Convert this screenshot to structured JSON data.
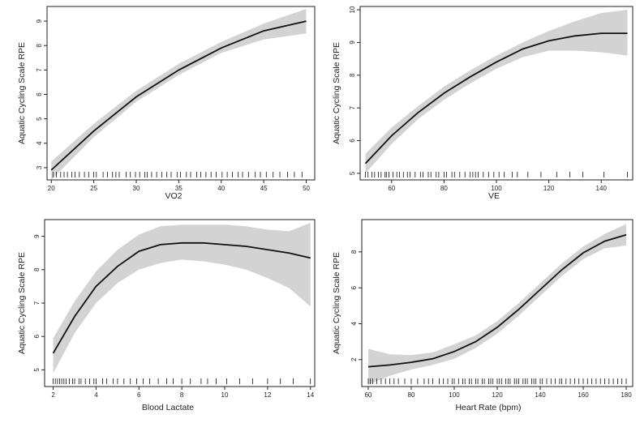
{
  "colors": {
    "band": "#d3d3d3",
    "line": "#111111",
    "axis": "#222222",
    "rug": "#111111"
  },
  "chart_data": [
    {
      "type": "line",
      "xlabel": "VO2",
      "ylabel": "Aquatic Cycling Scale RPE",
      "xlim": [
        19.5,
        51
      ],
      "ylim": [
        2.5,
        9.6
      ],
      "xticks": [
        20,
        25,
        30,
        35,
        40,
        45,
        50
      ],
      "yticks": [
        3,
        4,
        5,
        6,
        7,
        8,
        9
      ],
      "curve": {
        "x": [
          20,
          25,
          30,
          35,
          40,
          45,
          50
        ],
        "y": [
          2.9,
          4.5,
          5.9,
          7.0,
          7.9,
          8.6,
          9.0
        ]
      },
      "band": {
        "x": [
          20,
          25,
          30,
          35,
          40,
          45,
          50
        ],
        "lower": [
          2.5,
          4.25,
          5.7,
          6.8,
          7.7,
          8.25,
          8.5
        ],
        "upper": [
          3.25,
          4.8,
          6.15,
          7.25,
          8.15,
          8.9,
          9.5
        ]
      },
      "rug": [
        20.2,
        20.6,
        21.1,
        21.5,
        21.9,
        22.4,
        22.8,
        23.3,
        23.9,
        24.4,
        25.0,
        25.3,
        26.1,
        26.6,
        27.2,
        27.6,
        28.0,
        28.8,
        29.3,
        29.9,
        30.4,
        31.0,
        31.3,
        31.8,
        32.4,
        33.0,
        33.6,
        34.1,
        34.8,
        35.2,
        35.9,
        36.4,
        37.1,
        37.6,
        38.2,
        38.8,
        39.4,
        40.1,
        40.7,
        41.3,
        42.0,
        42.5,
        43.2,
        44.0,
        44.6,
        45.3,
        46.1,
        46.9,
        47.8,
        48.6,
        49.5
      ]
    },
    {
      "type": "line",
      "xlabel": "VE",
      "ylabel": "Aquatic Cycling Scale RPE",
      "xlim": [
        48,
        152
      ],
      "ylim": [
        4.8,
        10.1
      ],
      "xticks": [
        60,
        80,
        100,
        120,
        140
      ],
      "yticks": [
        5,
        6,
        7,
        8,
        9,
        10
      ],
      "curve": {
        "x": [
          50,
          60,
          70,
          80,
          90,
          100,
          110,
          120,
          130,
          140,
          150
        ],
        "y": [
          5.3,
          6.15,
          6.85,
          7.45,
          7.95,
          8.4,
          8.8,
          9.05,
          9.2,
          9.28,
          9.28
        ]
      },
      "band": {
        "x": [
          50,
          60,
          70,
          80,
          90,
          100,
          110,
          120,
          130,
          140,
          150
        ],
        "lower": [
          5.0,
          5.9,
          6.65,
          7.25,
          7.75,
          8.2,
          8.55,
          8.75,
          8.75,
          8.7,
          8.6
        ],
        "upper": [
          5.6,
          6.4,
          7.05,
          7.65,
          8.15,
          8.6,
          9.0,
          9.35,
          9.65,
          9.9,
          10.0
        ]
      },
      "rug": [
        50,
        51,
        52.5,
        53.5,
        55,
        56,
        57.5,
        58,
        59,
        60.5,
        62,
        63,
        64.5,
        66,
        67,
        69,
        71,
        72,
        74,
        75,
        77,
        78,
        80,
        81,
        83,
        84,
        86,
        88,
        90,
        91,
        92,
        93,
        95,
        97,
        99,
        101,
        103,
        106,
        108,
        112,
        117,
        123,
        128,
        133,
        141,
        150
      ]
    },
    {
      "type": "line",
      "xlabel": "Blood Lactate",
      "ylabel": "Aquatic Cycling Scale RPE",
      "xlim": [
        1.6,
        14.2
      ],
      "ylim": [
        4.5,
        9.5
      ],
      "xticks": [
        2,
        4,
        6,
        8,
        10,
        12,
        14
      ],
      "yticks": [
        5,
        6,
        7,
        8,
        9
      ],
      "curve": {
        "x": [
          2,
          3,
          4,
          5,
          6,
          7,
          8,
          9,
          10,
          11,
          12,
          13,
          14
        ],
        "y": [
          5.5,
          6.6,
          7.5,
          8.1,
          8.55,
          8.75,
          8.8,
          8.8,
          8.75,
          8.7,
          8.6,
          8.5,
          8.35
        ]
      },
      "band": {
        "x": [
          2,
          3,
          4,
          5,
          6,
          7,
          8,
          9,
          10,
          11,
          12,
          13,
          14
        ],
        "lower": [
          4.9,
          6.1,
          7.0,
          7.6,
          8.0,
          8.2,
          8.3,
          8.25,
          8.15,
          8.0,
          7.75,
          7.45,
          6.9
        ],
        "upper": [
          5.95,
          7.05,
          7.95,
          8.6,
          9.05,
          9.3,
          9.35,
          9.35,
          9.35,
          9.3,
          9.2,
          9.15,
          9.4
        ]
      },
      "rug": [
        2.0,
        2.1,
        2.2,
        2.3,
        2.4,
        2.5,
        2.6,
        2.75,
        2.9,
        3.0,
        3.2,
        3.3,
        3.5,
        3.7,
        3.9,
        4.0,
        4.3,
        4.5,
        4.8,
        5.0,
        5.3,
        5.6,
        5.9,
        6.2,
        6.5,
        6.9,
        7.3,
        7.6,
        8.0,
        8.4,
        8.9,
        9.2,
        9.6,
        10.1,
        10.7,
        11.3,
        12.0,
        12.6,
        13.2,
        14.0
      ]
    },
    {
      "type": "line",
      "xlabel": "Heart Rate (bpm)",
      "ylabel": "Aquatic Cycling Scale RPE",
      "xlim": [
        57,
        183
      ],
      "ylim": [
        0.5,
        9.8
      ],
      "xticks": [
        60,
        80,
        100,
        120,
        140,
        160,
        180
      ],
      "yticks": [
        2,
        4,
        6,
        8
      ],
      "curve": {
        "x": [
          60,
          70,
          80,
          90,
          100,
          110,
          120,
          130,
          140,
          150,
          160,
          170,
          180
        ],
        "y": [
          1.6,
          1.7,
          1.85,
          2.05,
          2.45,
          3.0,
          3.8,
          4.8,
          5.9,
          7.0,
          7.95,
          8.6,
          8.95
        ]
      },
      "band": {
        "x": [
          60,
          70,
          80,
          90,
          100,
          110,
          120,
          130,
          140,
          150,
          160,
          170,
          180
        ],
        "lower": [
          0.6,
          1.1,
          1.45,
          1.7,
          2.05,
          2.65,
          3.45,
          4.45,
          5.55,
          6.65,
          7.6,
          8.2,
          8.35
        ],
        "upper": [
          2.6,
          2.3,
          2.25,
          2.4,
          2.85,
          3.35,
          4.15,
          5.15,
          6.25,
          7.35,
          8.3,
          9.0,
          9.55
        ]
      },
      "rug": [
        60,
        61,
        62,
        64,
        66,
        68,
        70,
        72,
        74,
        77,
        80,
        83,
        86,
        88,
        90,
        93,
        95,
        97,
        99,
        100,
        102,
        104,
        105,
        107,
        108,
        110,
        111,
        113,
        114,
        116,
        117,
        118,
        120,
        121,
        122,
        124,
        125,
        126,
        128,
        129,
        130,
        132,
        133,
        134,
        136,
        137,
        138,
        140,
        141,
        143,
        145,
        147,
        149,
        150,
        152,
        154,
        156,
        158,
        160,
        162,
        164,
        166,
        168,
        170,
        172,
        174,
        176,
        178,
        180
      ]
    }
  ]
}
